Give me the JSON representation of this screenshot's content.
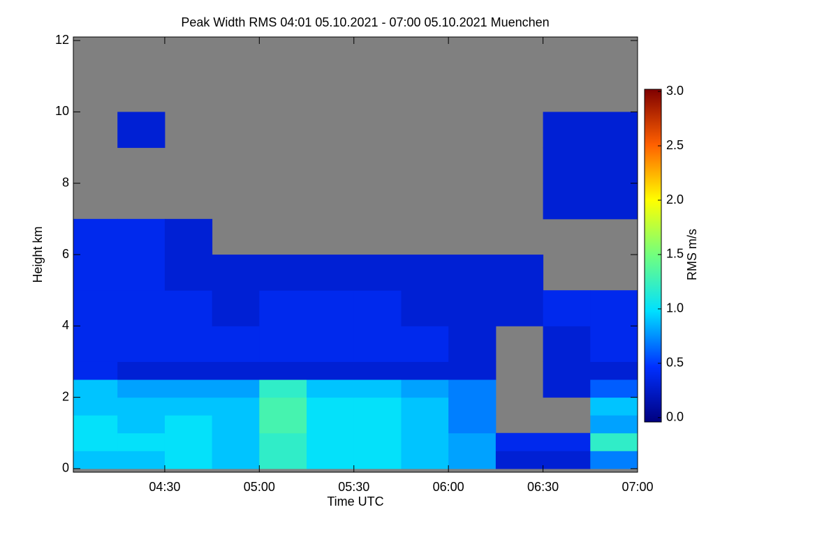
{
  "chart_data": {
    "type": "heatmap",
    "title": "Peak Width RMS   04:01 05.10.2021 - 07:00 05.10.2021 Muenchen",
    "x_label": "Time UTC",
    "y_label": "Height km",
    "colorbar_label": "RMS m/s",
    "xlim": [
      241,
      420
    ],
    "xticks": [
      {
        "value": 270,
        "label": "04:30"
      },
      {
        "value": 300,
        "label": "05:00"
      },
      {
        "value": 330,
        "label": "05:30"
      },
      {
        "value": 360,
        "label": "06:00"
      },
      {
        "value": 390,
        "label": "06:30"
      },
      {
        "value": 420,
        "label": "07:00"
      }
    ],
    "ylim": [
      -0.1,
      12.1
    ],
    "yticks": [
      0,
      2,
      4,
      6,
      8,
      10,
      12
    ],
    "clim": [
      -0.04,
      3.02
    ],
    "cticks": [
      {
        "value": 0,
        "label": "0.0"
      },
      {
        "value": 0.5,
        "label": "0.5"
      },
      {
        "value": 1,
        "label": "1.0"
      },
      {
        "value": 1.5,
        "label": "1.5"
      },
      {
        "value": 2,
        "label": "2.0"
      },
      {
        "value": 2.5,
        "label": "2.5"
      },
      {
        "value": 3,
        "label": "3.0"
      }
    ],
    "colormap": [
      "#00007f",
      "#0030ff",
      "#00e0ff",
      "#70ff80",
      "#ffff00",
      "#ff6000",
      "#7f0000"
    ],
    "missing_color": "#808080",
    "x_bins": [
      241,
      255,
      270,
      285,
      300,
      315,
      330,
      345,
      360,
      375,
      390,
      405,
      420
    ],
    "y_bins": [
      0,
      0.5,
      1,
      1.5,
      2,
      2.5,
      3,
      4,
      5,
      6,
      7,
      8,
      9,
      10,
      11,
      12
    ],
    "z": [
      [
        0.9,
        0.9,
        1.0,
        0.9,
        1.2,
        1.0,
        1.0,
        0.9,
        0.8,
        0.3,
        0.3,
        0.7
      ],
      [
        1.0,
        1.0,
        1.0,
        0.9,
        1.2,
        1.0,
        1.0,
        0.9,
        0.8,
        0.4,
        0.4,
        1.2
      ],
      [
        1.0,
        0.9,
        1.0,
        0.9,
        1.3,
        1.0,
        1.0,
        0.9,
        0.7,
        null,
        null,
        0.8
      ],
      [
        0.9,
        0.9,
        0.9,
        0.9,
        1.3,
        1.0,
        1.0,
        0.9,
        0.7,
        null,
        null,
        0.9
      ],
      [
        0.9,
        0.8,
        0.8,
        0.8,
        1.2,
        0.9,
        0.9,
        0.8,
        0.7,
        null,
        0.3,
        0.6
      ],
      [
        0.4,
        0.3,
        0.3,
        0.3,
        0.3,
        0.3,
        0.3,
        0.3,
        0.3,
        null,
        0.3,
        0.3
      ],
      [
        0.4,
        0.4,
        0.4,
        0.4,
        0.4,
        0.4,
        0.4,
        0.4,
        0.3,
        null,
        0.3,
        0.4
      ],
      [
        0.4,
        0.4,
        0.4,
        0.3,
        0.4,
        0.4,
        0.4,
        0.3,
        0.3,
        0.3,
        0.4,
        0.4
      ],
      [
        0.4,
        0.4,
        0.3,
        0.3,
        0.3,
        0.3,
        0.3,
        0.3,
        0.3,
        0.3,
        null,
        null
      ],
      [
        0.4,
        0.4,
        0.3,
        null,
        null,
        null,
        null,
        null,
        null,
        null,
        null,
        null
      ],
      [
        null,
        null,
        null,
        null,
        null,
        null,
        null,
        null,
        null,
        null,
        0.3,
        0.3
      ],
      [
        null,
        null,
        null,
        null,
        null,
        null,
        null,
        null,
        null,
        null,
        0.3,
        0.3
      ],
      [
        null,
        0.3,
        null,
        null,
        null,
        null,
        null,
        null,
        null,
        null,
        0.3,
        0.3
      ],
      [
        null,
        null,
        null,
        null,
        null,
        null,
        null,
        null,
        null,
        null,
        null,
        null
      ],
      [
        null,
        null,
        null,
        null,
        null,
        null,
        null,
        null,
        null,
        null,
        null,
        null
      ]
    ]
  }
}
